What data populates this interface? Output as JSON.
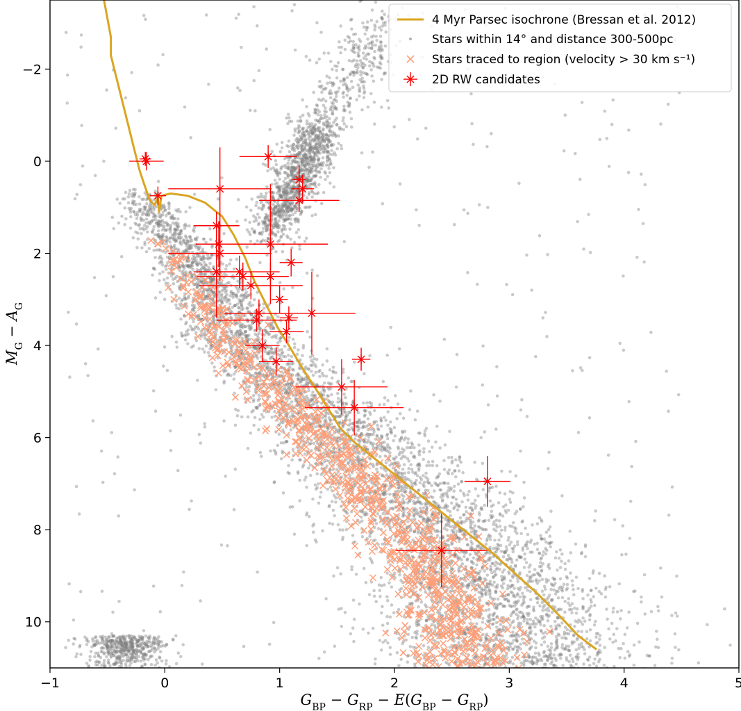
{
  "chart_data": {
    "type": "scatter",
    "title": "",
    "xlabel": "G_BP − G_RP − E(G_BP − G_RP)",
    "ylabel": "M_G − A_G",
    "xlim": [
      -1,
      5
    ],
    "ylim": [
      11,
      -3.5
    ],
    "y_inverted": true,
    "grid": false,
    "legend_position": "top-right",
    "x_ticks": [
      -1,
      0,
      1,
      2,
      3,
      4,
      5
    ],
    "y_ticks": [
      -2,
      0,
      2,
      4,
      6,
      8,
      10
    ],
    "colors": {
      "isochrone": "#DAA520",
      "field_stars": "#808080",
      "traced_stars": "#FFA07A",
      "candidates": "#FF0000"
    },
    "legend": [
      {
        "key": "isochrone",
        "label": "4 Myr Parsec isochrone (Bressan et al. 2012)"
      },
      {
        "key": "field_stars",
        "label": "Stars within 14° and distance 300-500pc"
      },
      {
        "key": "traced_stars",
        "label": "Stars traced to region (velocity > 30 km s⁻¹)"
      },
      {
        "key": "candidates",
        "label": "2D RW candidates"
      }
    ],
    "isochrone": {
      "name": "4 Myr Parsec isochrone (Bressan et al. 2012)",
      "points": [
        [
          -0.53,
          -3.5
        ],
        [
          -0.5,
          -3.1
        ],
        [
          -0.47,
          -2.7
        ],
        [
          -0.47,
          -2.3
        ],
        [
          -0.45,
          -2.1
        ],
        [
          -0.42,
          -1.8
        ],
        [
          -0.38,
          -1.4
        ],
        [
          -0.34,
          -1.0
        ],
        [
          -0.3,
          -0.6
        ],
        [
          -0.26,
          -0.2
        ],
        [
          -0.22,
          0.2
        ],
        [
          -0.18,
          0.5
        ],
        [
          -0.13,
          0.85
        ],
        [
          -0.09,
          0.95
        ],
        [
          -0.06,
          0.8
        ],
        [
          -0.05,
          1.1
        ],
        [
          -0.03,
          0.75
        ],
        [
          0.05,
          0.7
        ],
        [
          0.2,
          0.75
        ],
        [
          0.35,
          0.9
        ],
        [
          0.5,
          1.2
        ],
        [
          0.6,
          1.6
        ],
        [
          0.7,
          2.1
        ],
        [
          0.78,
          2.6
        ],
        [
          0.88,
          3.1
        ],
        [
          0.98,
          3.6
        ],
        [
          1.08,
          4.0
        ],
        [
          1.2,
          4.5
        ],
        [
          1.33,
          5.0
        ],
        [
          1.43,
          5.4
        ],
        [
          1.53,
          5.8
        ],
        [
          1.65,
          6.1
        ],
        [
          1.85,
          6.5
        ],
        [
          2.05,
          6.9
        ],
        [
          2.25,
          7.3
        ],
        [
          2.45,
          7.7
        ],
        [
          2.65,
          8.1
        ],
        [
          2.85,
          8.5
        ],
        [
          3.05,
          8.95
        ],
        [
          3.25,
          9.4
        ],
        [
          3.45,
          9.9
        ],
        [
          3.6,
          10.3
        ],
        [
          3.76,
          10.6
        ]
      ]
    },
    "candidates": [
      {
        "x": -0.16,
        "y": 0.0,
        "xerr": 0.15,
        "yerr": 0.2
      },
      {
        "x": -0.17,
        "y": -0.05,
        "xerr": 0.05,
        "yerr": 0.15
      },
      {
        "x": -0.06,
        "y": 0.75,
        "xerr": 0.07,
        "yerr": 0.2
      },
      {
        "x": 0.48,
        "y": 0.6,
        "xerr": 0.45,
        "yerr": 0.9
      },
      {
        "x": 0.9,
        "y": -0.1,
        "xerr": 0.25,
        "yerr": 0.25
      },
      {
        "x": 1.17,
        "y": 0.4,
        "xerr": 0.06,
        "yerr": 0.3
      },
      {
        "x": 1.2,
        "y": 0.6,
        "xerr": 0.1,
        "yerr": 0.3
      },
      {
        "x": 1.17,
        "y": 0.85,
        "xerr": 0.35,
        "yerr": 0.25
      },
      {
        "x": 0.45,
        "y": 1.4,
        "xerr": 0.2,
        "yerr": 0.3
      },
      {
        "x": 0.47,
        "y": 1.8,
        "xerr": 0.2,
        "yerr": 0.5
      },
      {
        "x": 0.48,
        "y": 2.0,
        "xerr": 0.45,
        "yerr": 0.6
      },
      {
        "x": 0.45,
        "y": 2.4,
        "xerr": 0.2,
        "yerr": 1.0
      },
      {
        "x": 0.92,
        "y": 1.8,
        "xerr": 0.5,
        "yerr": 1.3
      },
      {
        "x": 0.65,
        "y": 2.4,
        "xerr": 0.35,
        "yerr": 0.35
      },
      {
        "x": 0.68,
        "y": 2.5,
        "xerr": 0.4,
        "yerr": 0.3
      },
      {
        "x": 0.75,
        "y": 2.7,
        "xerr": 0.45,
        "yerr": 0.3
      },
      {
        "x": 1.1,
        "y": 2.2,
        "xerr": 0.1,
        "yerr": 0.3
      },
      {
        "x": 0.92,
        "y": 2.5,
        "xerr": 0.15,
        "yerr": 0.3
      },
      {
        "x": 1.0,
        "y": 3.0,
        "xerr": 0.07,
        "yerr": 0.3
      },
      {
        "x": 0.82,
        "y": 3.3,
        "xerr": 0.3,
        "yerr": 0.3
      },
      {
        "x": 0.8,
        "y": 3.45,
        "xerr": 0.35,
        "yerr": 0.25
      },
      {
        "x": 1.28,
        "y": 3.3,
        "xerr": 0.38,
        "yerr": 0.9
      },
      {
        "x": 1.08,
        "y": 3.4,
        "xerr": 0.08,
        "yerr": 0.25
      },
      {
        "x": 1.06,
        "y": 3.7,
        "xerr": 0.15,
        "yerr": 0.25
      },
      {
        "x": 0.85,
        "y": 4.0,
        "xerr": 0.15,
        "yerr": 0.35
      },
      {
        "x": 0.97,
        "y": 4.35,
        "xerr": 0.15,
        "yerr": 0.3
      },
      {
        "x": 1.71,
        "y": 4.3,
        "xerr": 0.08,
        "yerr": 0.25
      },
      {
        "x": 1.54,
        "y": 4.9,
        "xerr": 0.4,
        "yerr": 0.6
      },
      {
        "x": 1.65,
        "y": 5.35,
        "xerr": 0.43,
        "yerr": 0.6
      },
      {
        "x": 2.81,
        "y": 6.95,
        "xerr": 0.2,
        "yerr": 0.55
      },
      {
        "x": 2.41,
        "y": 8.45,
        "xerr": 0.4,
        "yerr": 0.8
      }
    ]
  }
}
